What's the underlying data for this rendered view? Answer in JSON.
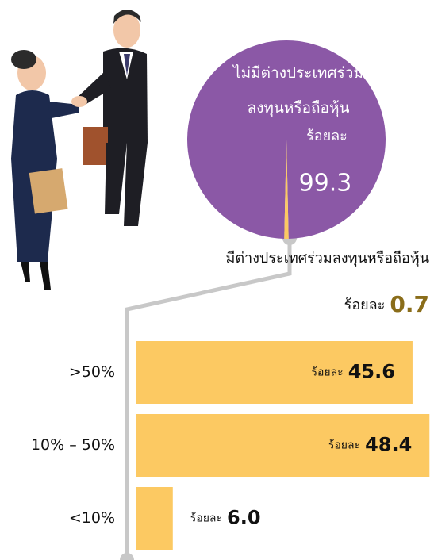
{
  "chart_data": [
    {
      "type": "pie",
      "categories": [
        "ไม่มีต่างประเทศร่วมลงทุนหรือถือหุ้น",
        "มีต่างประเทศร่วมลงทุนหรือถือหุ้น"
      ],
      "values": [
        99.3,
        0.7
      ],
      "colors": [
        "#8b58a6",
        "#fcc962"
      ],
      "value_prefix": "ร้อยละ"
    },
    {
      "type": "bar",
      "categories": [
        ">50%",
        "10% – 50%",
        "<10%"
      ],
      "values": [
        45.6,
        48.4,
        6.0
      ],
      "value_labels": [
        "45.6",
        "48.4",
        "6.0"
      ],
      "color": "#fcc962",
      "value_prefix": "ร้อยละ"
    }
  ]
}
